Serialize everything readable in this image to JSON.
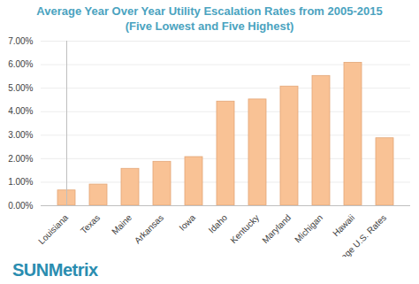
{
  "chart_data": {
    "type": "bar",
    "title": "Average Year Over Year Utility Escalation Rates from 2005-2015",
    "subtitle": "(Five Lowest and Five Highest)",
    "categories": [
      "Louisiana",
      "Texas",
      "Maine",
      "Arkansas",
      "Iowa",
      "Idaho",
      "Kentucky",
      "Maryland",
      "Michigan",
      "Hawaii",
      "Average U.S. Rates"
    ],
    "values": [
      0.65,
      0.9,
      1.57,
      1.87,
      2.07,
      4.43,
      4.52,
      5.07,
      5.52,
      6.08,
      2.87
    ],
    "color": "#f9c295",
    "ylim": [
      0,
      7
    ],
    "yticks": [
      {
        "value": 0,
        "label": "0.00%"
      },
      {
        "value": 1,
        "label": "1.00%"
      },
      {
        "value": 2,
        "label": "2.00%"
      },
      {
        "value": 3,
        "label": "3.00%"
      },
      {
        "value": 4,
        "label": "4.00%"
      },
      {
        "value": 5,
        "label": "5.00%"
      },
      {
        "value": 6,
        "label": "6.00%"
      },
      {
        "value": 7,
        "label": "7.00%"
      }
    ],
    "grid": true,
    "annotations": [
      "SUNMetrix"
    ]
  }
}
